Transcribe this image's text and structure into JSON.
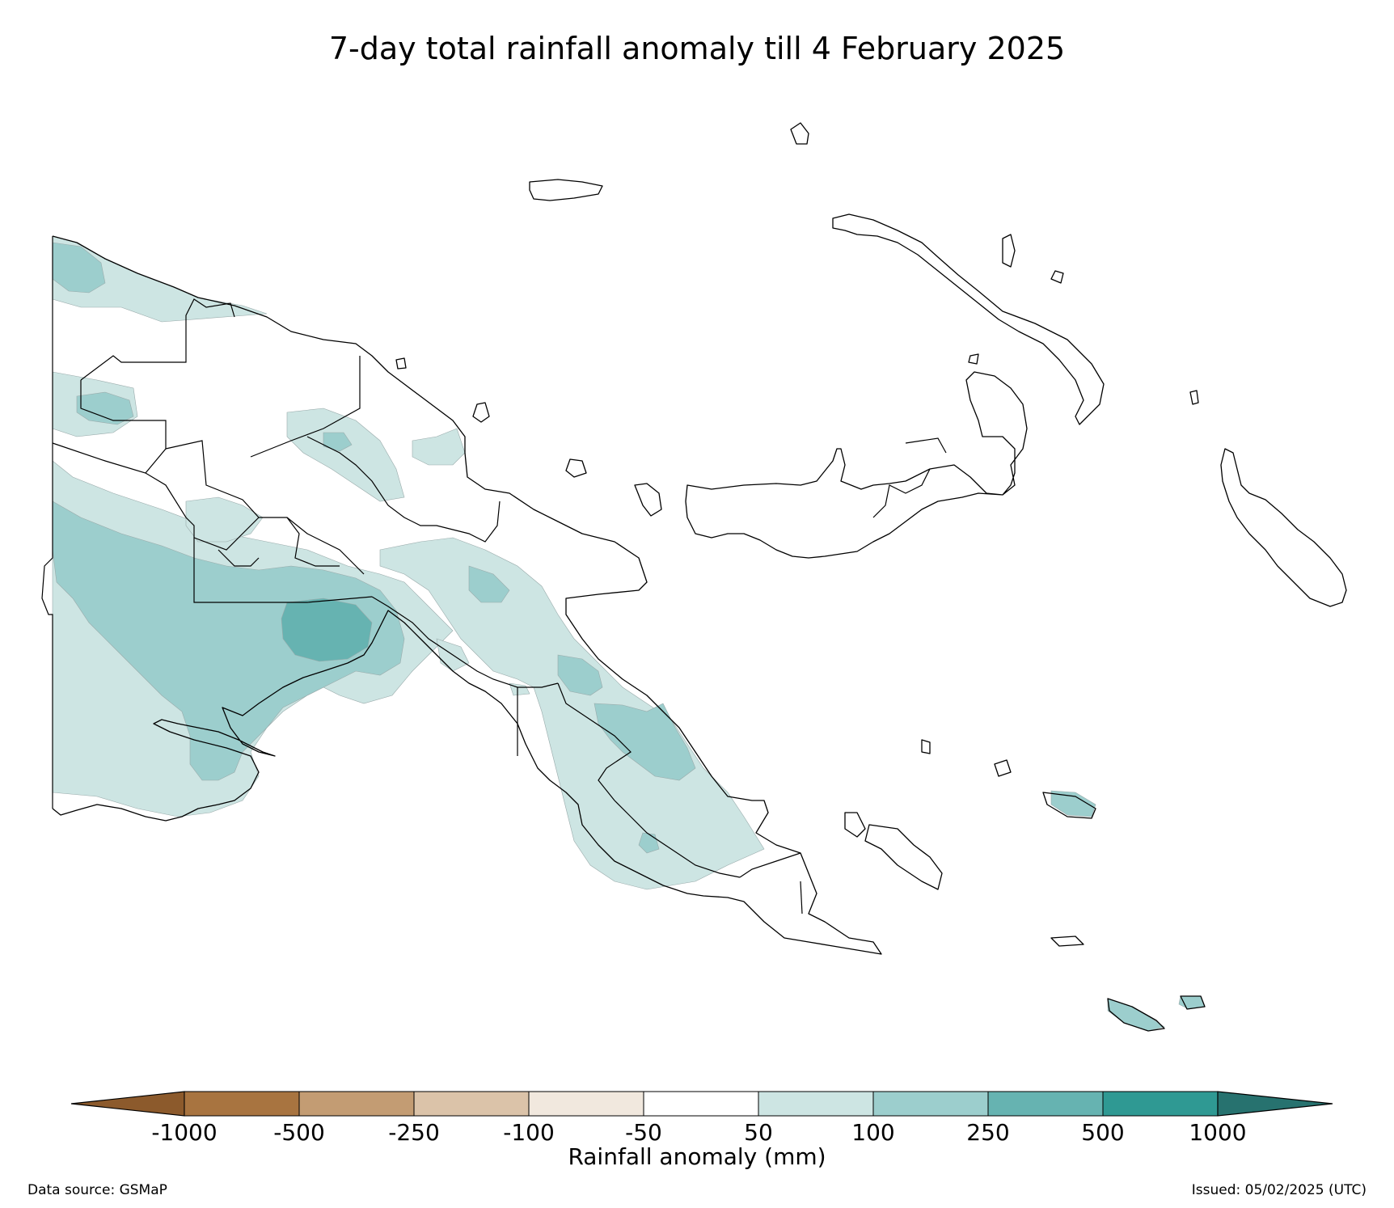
{
  "title": "7-day total rainfall anomaly till 4 February 2025",
  "colorbar": {
    "title": "Rainfall anomaly (mm)",
    "ticks": [
      "-1000",
      "-500",
      "-250",
      "-100",
      "-50",
      "50",
      "100",
      "250",
      "500",
      "1000"
    ],
    "bins": [
      {
        "label": "< -1000",
        "color": "#8c5a2c"
      },
      {
        "label": "-1000 to -500",
        "color": "#a87440"
      },
      {
        "label": "-500 to -250",
        "color": "#c39c73"
      },
      {
        "label": "-250 to -100",
        "color": "#dbc3a9"
      },
      {
        "label": "-100 to -50",
        "color": "#f1e8de"
      },
      {
        "label": "-50 to 50",
        "color": "#ffffff"
      },
      {
        "label": "50 to 100",
        "color": "#cde5e3"
      },
      {
        "label": "100 to 250",
        "color": "#9ccecd"
      },
      {
        "label": "250 to 500",
        "color": "#66b3b1"
      },
      {
        "label": "500 to 1000",
        "color": "#2f9993"
      },
      {
        "label": "> 1000",
        "color": "#27726f"
      }
    ]
  },
  "footer": {
    "source": "Data source: GSMaP",
    "issued": "Issued: 05/02/2025 (UTC)"
  }
}
